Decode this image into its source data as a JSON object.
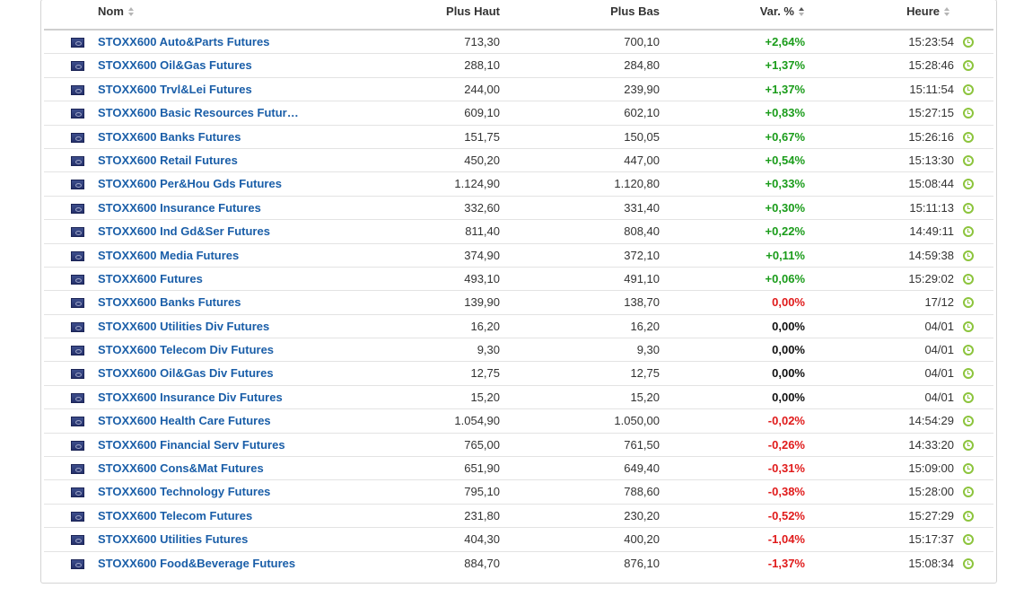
{
  "table": {
    "headers": {
      "nom": "Nom",
      "plus_haut": "Plus Haut",
      "plus_bas": "Plus Bas",
      "var": "Var. %",
      "heure": "Heure"
    },
    "rows": [
      {
        "nom": "STOXX600 Auto&Parts Futures",
        "haut": "713,30",
        "bas": "700,10",
        "var": "+2,64%",
        "heure": "15:23:54",
        "trend": "pos"
      },
      {
        "nom": "STOXX600 Oil&Gas Futures",
        "haut": "288,10",
        "bas": "284,80",
        "var": "+1,37%",
        "heure": "15:28:46",
        "trend": "pos"
      },
      {
        "nom": "STOXX600 Trvl&Lei Futures",
        "haut": "244,00",
        "bas": "239,90",
        "var": "+1,37%",
        "heure": "15:11:54",
        "trend": "pos"
      },
      {
        "nom": "STOXX600 Basic Resources Futur…",
        "haut": "609,10",
        "bas": "602,10",
        "var": "+0,83%",
        "heure": "15:27:15",
        "trend": "pos"
      },
      {
        "nom": "STOXX600 Banks Futures",
        "haut": "151,75",
        "bas": "150,05",
        "var": "+0,67%",
        "heure": "15:26:16",
        "trend": "pos"
      },
      {
        "nom": "STOXX600 Retail Futures",
        "haut": "450,20",
        "bas": "447,00",
        "var": "+0,54%",
        "heure": "15:13:30",
        "trend": "pos"
      },
      {
        "nom": "STOXX600 Per&Hou Gds Futures",
        "haut": "1.124,90",
        "bas": "1.120,80",
        "var": "+0,33%",
        "heure": "15:08:44",
        "trend": "pos"
      },
      {
        "nom": "STOXX600 Insurance Futures",
        "haut": "332,60",
        "bas": "331,40",
        "var": "+0,30%",
        "heure": "15:11:13",
        "trend": "pos"
      },
      {
        "nom": "STOXX600 Ind Gd&Ser Futures",
        "haut": "811,40",
        "bas": "808,40",
        "var": "+0,22%",
        "heure": "14:49:11",
        "trend": "pos"
      },
      {
        "nom": "STOXX600 Media Futures",
        "haut": "374,90",
        "bas": "372,10",
        "var": "+0,11%",
        "heure": "14:59:38",
        "trend": "pos"
      },
      {
        "nom": "STOXX600 Futures",
        "haut": "493,10",
        "bas": "491,10",
        "var": "+0,06%",
        "heure": "15:29:02",
        "trend": "pos"
      },
      {
        "nom": "STOXX600 Banks Futures",
        "haut": "139,90",
        "bas": "138,70",
        "var": "0,00%",
        "heure": "17/12",
        "trend": "neg"
      },
      {
        "nom": "STOXX600 Utilities Div Futures",
        "haut": "16,20",
        "bas": "16,20",
        "var": "0,00%",
        "heure": "04/01",
        "trend": "zero"
      },
      {
        "nom": "STOXX600 Telecom Div Futures",
        "haut": "9,30",
        "bas": "9,30",
        "var": "0,00%",
        "heure": "04/01",
        "trend": "zero"
      },
      {
        "nom": "STOXX600 Oil&Gas Div Futures",
        "haut": "12,75",
        "bas": "12,75",
        "var": "0,00%",
        "heure": "04/01",
        "trend": "zero"
      },
      {
        "nom": "STOXX600 Insurance Div Futures",
        "haut": "15,20",
        "bas": "15,20",
        "var": "0,00%",
        "heure": "04/01",
        "trend": "zero"
      },
      {
        "nom": "STOXX600 Health Care Futures",
        "haut": "1.054,90",
        "bas": "1.050,00",
        "var": "-0,02%",
        "heure": "14:54:29",
        "trend": "neg"
      },
      {
        "nom": "STOXX600 Financial Serv Futures",
        "haut": "765,00",
        "bas": "761,50",
        "var": "-0,26%",
        "heure": "14:33:20",
        "trend": "neg"
      },
      {
        "nom": "STOXX600 Cons&Mat Futures",
        "haut": "651,90",
        "bas": "649,40",
        "var": "-0,31%",
        "heure": "15:09:00",
        "trend": "neg"
      },
      {
        "nom": "STOXX600 Technology Futures",
        "haut": "795,10",
        "bas": "788,60",
        "var": "-0,38%",
        "heure": "15:28:00",
        "trend": "neg"
      },
      {
        "nom": "STOXX600 Telecom Futures",
        "haut": "231,80",
        "bas": "230,20",
        "var": "-0,52%",
        "heure": "15:27:29",
        "trend": "neg"
      },
      {
        "nom": "STOXX600 Utilities Futures",
        "haut": "404,30",
        "bas": "400,20",
        "var": "-1,04%",
        "heure": "15:17:37",
        "trend": "neg"
      },
      {
        "nom": "STOXX600 Food&Beverage Futures",
        "haut": "884,70",
        "bas": "876,10",
        "var": "-1,37%",
        "heure": "15:08:34",
        "trend": "neg"
      }
    ]
  },
  "icons": {
    "flag": "eu-flag-icon",
    "clock": "clock-icon",
    "sort": "sort-arrows-icon"
  },
  "colors": {
    "positive": "#1a9c1a",
    "negative": "#e01b1b",
    "neutral": "#111111",
    "link": "#1a5ea8",
    "clock": "#8cc43c"
  }
}
